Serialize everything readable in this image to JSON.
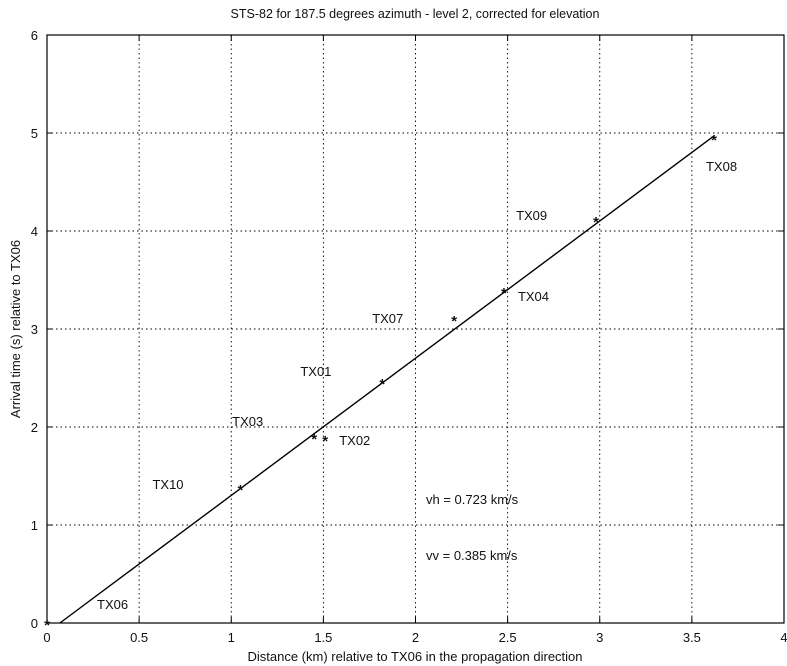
{
  "chart_data": {
    "type": "scatter",
    "title": "STS-82 for 187.5 degrees azimuth - level 2, corrected for elevation",
    "xlabel": "Distance (km) relative to TX06 in the propagation direction",
    "ylabel": "Arrival time (s) relative to TX06",
    "xlim": [
      0,
      4
    ],
    "ylim": [
      0,
      6
    ],
    "x_ticks": [
      "0",
      "0.5",
      "1",
      "1.5",
      "2",
      "2.5",
      "3",
      "3.5",
      "4"
    ],
    "y_ticks": [
      "0",
      "1",
      "2",
      "3",
      "4",
      "5",
      "6"
    ],
    "grid": "dotted",
    "points": [
      {
        "label": "TX06",
        "x": 0.0,
        "y": 0.0
      },
      {
        "label": "TX10",
        "x": 1.05,
        "y": 1.38
      },
      {
        "label": "TX03",
        "x": 1.45,
        "y": 1.9
      },
      {
        "label": "TX02",
        "x": 1.51,
        "y": 1.88
      },
      {
        "label": "TX01",
        "x": 1.82,
        "y": 2.46
      },
      {
        "label": "TX07",
        "x": 2.21,
        "y": 3.1
      },
      {
        "label": "TX04",
        "x": 2.48,
        "y": 3.39
      },
      {
        "label": "TX09",
        "x": 2.98,
        "y": 4.11
      },
      {
        "label": "TX08",
        "x": 3.62,
        "y": 4.95
      }
    ],
    "fit_line": {
      "x": [
        0.07,
        3.62
      ],
      "y": [
        0.0,
        4.97
      ]
    },
    "annotations": [
      "vh = 0.723 km/s",
      "vv = 0.385 km/s"
    ]
  }
}
